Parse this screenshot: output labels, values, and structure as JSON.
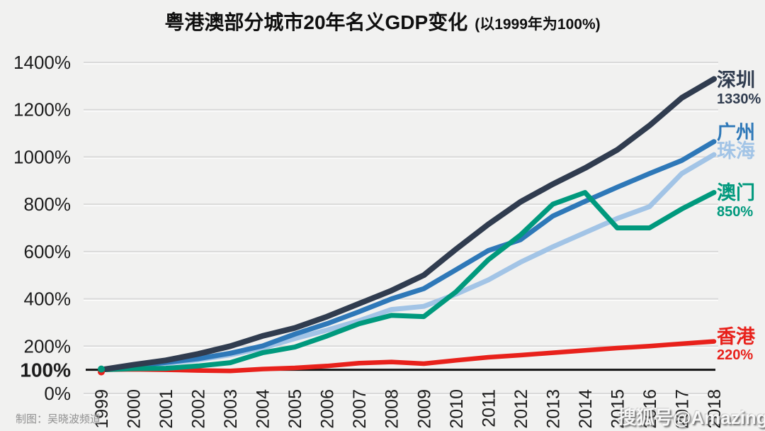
{
  "title": {
    "main": "粤港澳部分城市20年名义GDP变化",
    "qualifier": "(以1999年为100%)"
  },
  "credit": "制图：吴晓波频道",
  "watermark": "搜狐号@Amazing",
  "colors": {
    "background": "#f1f1f0",
    "gridline": "#dadada",
    "gridline_highlight": "#ffffff",
    "baseline": "#141414",
    "axis_text": "#1c1c1c"
  },
  "chart_data": {
    "type": "line",
    "title": "粤港澳部分城市20年名义GDP变化 (以1999年为100%)",
    "x": [
      1999,
      2000,
      2001,
      2002,
      2003,
      2004,
      2005,
      2006,
      2007,
      2008,
      2009,
      2010,
      2011,
      2012,
      2013,
      2014,
      2015,
      2016,
      2017,
      2018
    ],
    "ylim": [
      0,
      1400
    ],
    "grid": true,
    "baseline_value": 100,
    "legend_position": "right-end-labels",
    "y_ticks": [
      {
        "value": 1400,
        "label": "1400%",
        "bold": false
      },
      {
        "value": 1200,
        "label": "1200%",
        "bold": false
      },
      {
        "value": 1000,
        "label": "1000%",
        "bold": false
      },
      {
        "value": 800,
        "label": "800%",
        "bold": false
      },
      {
        "value": 600,
        "label": "600%",
        "bold": false
      },
      {
        "value": 400,
        "label": "400%",
        "bold": false
      },
      {
        "value": 200,
        "label": "200%",
        "bold": false
      },
      {
        "value": 100,
        "label": "100%",
        "bold": true
      },
      {
        "value": 0,
        "label": "0%",
        "bold": false
      }
    ],
    "series": [
      {
        "key": "shenzhen",
        "name": "深圳",
        "end_label": "1330%",
        "color": "#303c4f",
        "width": 8,
        "values": [
          100,
          121,
          140,
          167,
          200,
          243,
          277,
          325,
          380,
          435,
          500,
          610,
          715,
          810,
          885,
          953,
          1030,
          1133,
          1250,
          1330
        ]
      },
      {
        "key": "guangzhou",
        "name": "广州",
        "end_label": "",
        "color": "#2e78b8",
        "width": 7,
        "values": [
          100,
          116,
          131,
          147,
          170,
          201,
          251,
          295,
          346,
          400,
          443,
          523,
          604,
          650,
          750,
          812,
          872,
          930,
          985,
          1065
        ]
      },
      {
        "key": "zhuhai",
        "name": "珠海",
        "end_label": "",
        "color": "#a2c4e6",
        "width": 7,
        "values": [
          100,
          114,
          127,
          142,
          163,
          192,
          232,
          268,
          308,
          355,
          368,
          420,
          480,
          555,
          620,
          680,
          740,
          790,
          930,
          1010
        ]
      },
      {
        "key": "macau",
        "name": "澳门",
        "end_label": "850%",
        "color": "#00997d",
        "width": 7,
        "values": [
          100,
          105,
          106,
          116,
          130,
          172,
          196,
          243,
          295,
          330,
          325,
          430,
          565,
          670,
          800,
          850,
          700,
          700,
          780,
          850
        ]
      },
      {
        "key": "hongkong",
        "name": "香港",
        "end_label": "220%",
        "color": "#e8211b",
        "width": 6.5,
        "values": [
          100,
          102,
          100,
          97,
          95,
          103,
          108,
          116,
          128,
          133,
          126,
          140,
          153,
          162,
          172,
          182,
          192,
          200,
          210,
          220
        ]
      }
    ]
  }
}
